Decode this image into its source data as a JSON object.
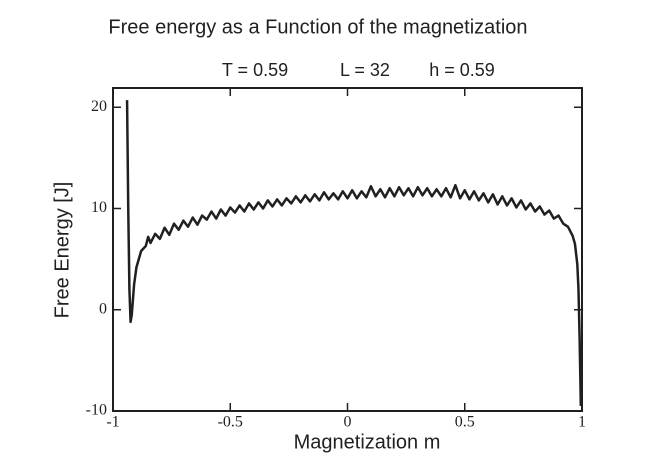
{
  "chart_data": {
    "type": "line",
    "title": "Free energy as a Function of the magnetization",
    "annotations": [
      "T = 0.59",
      "L = 32",
      "h = 0.59"
    ],
    "xlabel": "Magnetization m",
    "ylabel": "Free Energy [J]",
    "xlim": [
      -1,
      1
    ],
    "ylim": [
      -10,
      21.9
    ],
    "xticks": [
      -1,
      -0.5,
      0,
      0.5,
      1
    ],
    "yticks": [
      -10,
      0,
      10,
      20
    ],
    "x": [
      -0.94,
      -0.935,
      -0.93,
      -0.925,
      -0.92,
      -0.91,
      -0.9,
      -0.89,
      -0.88,
      -0.86,
      -0.85,
      -0.84,
      -0.82,
      -0.8,
      -0.78,
      -0.76,
      -0.74,
      -0.72,
      -0.7,
      -0.68,
      -0.66,
      -0.64,
      -0.62,
      -0.6,
      -0.58,
      -0.56,
      -0.54,
      -0.52,
      -0.5,
      -0.48,
      -0.46,
      -0.44,
      -0.42,
      -0.4,
      -0.38,
      -0.36,
      -0.34,
      -0.32,
      -0.3,
      -0.28,
      -0.26,
      -0.24,
      -0.22,
      -0.2,
      -0.18,
      -0.16,
      -0.14,
      -0.12,
      -0.1,
      -0.08,
      -0.06,
      -0.04,
      -0.02,
      0,
      0.02,
      0.04,
      0.06,
      0.08,
      0.1,
      0.12,
      0.14,
      0.16,
      0.18,
      0.2,
      0.22,
      0.24,
      0.26,
      0.28,
      0.3,
      0.32,
      0.34,
      0.36,
      0.38,
      0.4,
      0.42,
      0.44,
      0.46,
      0.48,
      0.5,
      0.52,
      0.54,
      0.56,
      0.58,
      0.6,
      0.62,
      0.64,
      0.66,
      0.68,
      0.7,
      0.72,
      0.74,
      0.76,
      0.78,
      0.8,
      0.82,
      0.84,
      0.86,
      0.88,
      0.9,
      0.92,
      0.94,
      0.96,
      0.97,
      0.98,
      0.985,
      0.99,
      0.995
    ],
    "series": [
      {
        "color": "#231f20",
        "values": [
          20.7,
          10,
          2,
          -1.2,
          -0.5,
          2.5,
          4.2,
          5.0,
          5.8,
          6.3,
          7.2,
          6.6,
          7.5,
          7.0,
          8.1,
          7.4,
          8.5,
          7.9,
          8.8,
          8.2,
          9.1,
          8.4,
          9.3,
          8.9,
          9.7,
          9.0,
          9.9,
          9.3,
          10.1,
          9.6,
          10.3,
          9.7,
          10.5,
          9.9,
          10.6,
          10.0,
          10.8,
          10.2,
          10.9,
          10.3,
          11.0,
          10.5,
          11.2,
          10.6,
          11.3,
          10.7,
          11.4,
          10.8,
          11.6,
          10.9,
          11.5,
          10.9,
          11.7,
          11.0,
          11.8,
          11.0,
          11.7,
          11.1,
          12.2,
          11.2,
          11.9,
          11.1,
          12.0,
          11.2,
          12.1,
          11.3,
          12.0,
          11.2,
          12.1,
          11.3,
          12.0,
          11.2,
          11.9,
          11.2,
          12.0,
          11.1,
          12.3,
          11.0,
          11.8,
          10.9,
          11.7,
          10.8,
          11.5,
          10.6,
          11.4,
          10.4,
          11.2,
          10.3,
          11.0,
          10.1,
          10.8,
          9.9,
          10.5,
          9.7,
          10.2,
          9.4,
          9.8,
          9.0,
          9.3,
          8.5,
          8.2,
          7.3,
          6.5,
          4.5,
          2,
          -3,
          -9.5
        ]
      }
    ]
  }
}
